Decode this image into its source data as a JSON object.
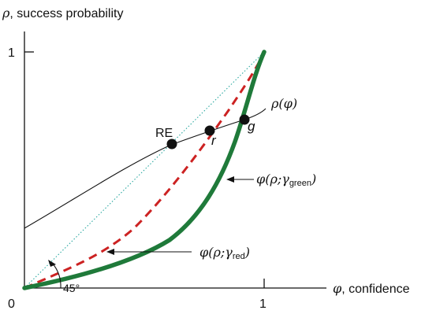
{
  "axes": {
    "y_label_symbol": "ρ",
    "y_label_text": ", success probability",
    "x_label_symbol": "φ",
    "x_label_text": ", confidence",
    "y_tick": "1",
    "x_tick": "1",
    "origin": "0",
    "angle": "45°"
  },
  "curves": {
    "rho": {
      "label": "ρ(φ)"
    },
    "green": {
      "label_main": "φ(ρ;γ",
      "label_sub": "green",
      "label_close": ")",
      "color": "#1f7a3a"
    },
    "red": {
      "label_main": "φ(ρ;γ",
      "label_sub": "red",
      "label_close": ")",
      "color": "#cc2222"
    },
    "diagonal": {
      "color": "#2aa8a0"
    }
  },
  "points": {
    "re": "RE",
    "r": "r",
    "g": "g"
  }
}
